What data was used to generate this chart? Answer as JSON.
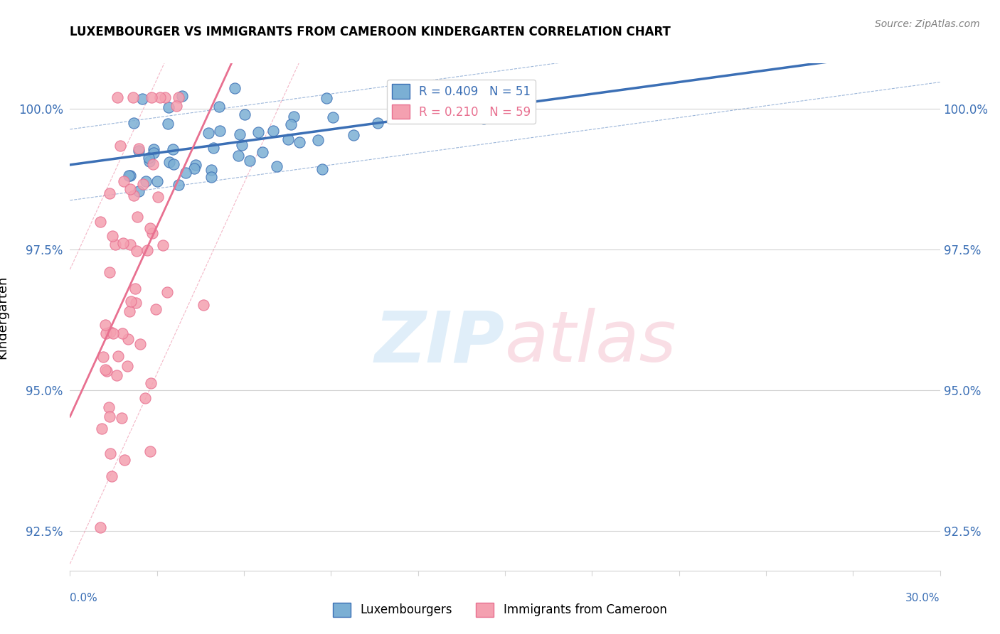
{
  "title": "LUXEMBOURGER VS IMMIGRANTS FROM CAMEROON KINDERGARTEN CORRELATION CHART",
  "source": "Source: ZipAtlas.com",
  "ylabel": "Kindergarten",
  "xlim": [
    0.0,
    30.0
  ],
  "ylim": [
    91.8,
    100.8
  ],
  "yticks": [
    92.5,
    95.0,
    97.5,
    100.0
  ],
  "ytick_labels": [
    "92.5%",
    "95.0%",
    "97.5%",
    "100.0%"
  ],
  "blue_R": 0.409,
  "blue_N": 51,
  "pink_R": 0.21,
  "pink_N": 59,
  "blue_color": "#7bafd4",
  "pink_color": "#f4a0b0",
  "blue_line_color": "#3b6fb5",
  "pink_line_color": "#e87090",
  "legend_label_blue": "Luxembourgers",
  "legend_label_pink": "Immigrants from Cameroon"
}
